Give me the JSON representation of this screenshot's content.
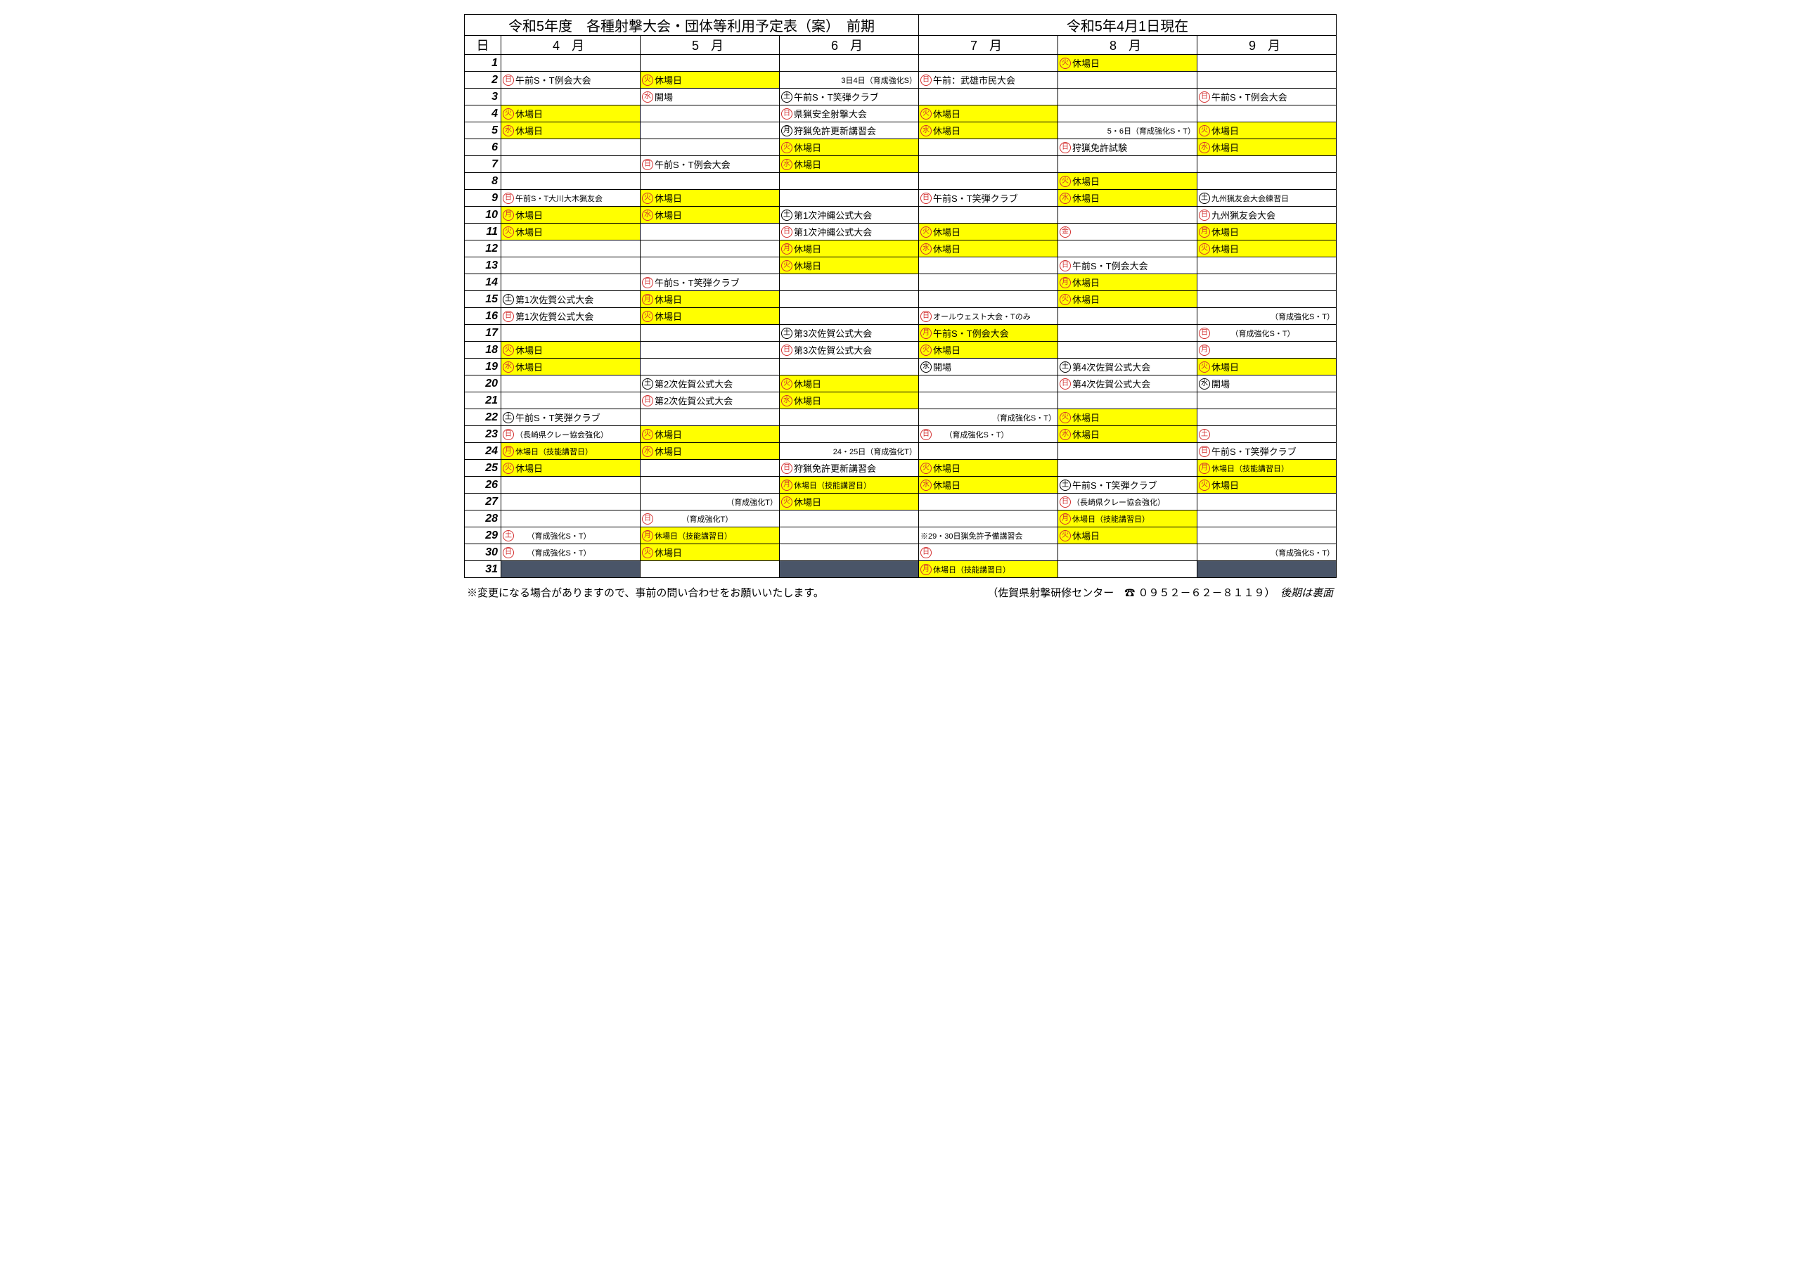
{
  "title": {
    "left": "令和5年度　各種射撃大会・団体等利用予定表（案）　前期",
    "right": "令和5年4月1日現在"
  },
  "headers": {
    "day": "日",
    "months": [
      "4 月",
      "5 月",
      "6 月",
      "7 月",
      "8 月",
      "9 月"
    ]
  },
  "rows": [
    {
      "d": "1",
      "c": [
        {},
        {},
        {},
        {},
        {
          "h": true,
          "y": "火",
          "yc": "red",
          "t": "休場日"
        },
        {}
      ]
    },
    {
      "d": "2",
      "c": [
        {
          "y": "日",
          "yc": "red",
          "t": "午前S・T例会大会"
        },
        {
          "h": true,
          "y": "火",
          "yc": "red",
          "t": "休場日"
        },
        {
          "t": "3日4日（育成強化S）",
          "a": "right",
          "sm": true
        },
        {
          "y": "日",
          "yc": "red",
          "t": "午前：武雄市民大会"
        },
        {},
        {}
      ]
    },
    {
      "d": "3",
      "c": [
        {},
        {
          "y": "水",
          "yc": "red",
          "t": "開場"
        },
        {
          "y": "土",
          "yc": "blk",
          "t": "午前S・T笑弾クラブ"
        },
        {},
        {},
        {
          "y": "日",
          "yc": "red",
          "t": "午前S・T例会大会"
        }
      ]
    },
    {
      "d": "4",
      "c": [
        {
          "h": true,
          "y": "火",
          "yc": "red",
          "t": "休場日"
        },
        {},
        {
          "y": "日",
          "yc": "red",
          "t": "県猟安全射撃大会"
        },
        {
          "h": true,
          "y": "火",
          "yc": "red",
          "t": "休場日"
        },
        {},
        {}
      ]
    },
    {
      "d": "5",
      "c": [
        {
          "h": true,
          "y": "水",
          "yc": "red",
          "t": "休場日"
        },
        {},
        {
          "y": "月",
          "yc": "blk",
          "t": "狩猟免許更新講習会"
        },
        {
          "h": true,
          "y": "水",
          "yc": "red",
          "t": "休場日"
        },
        {
          "t": "5・6日（育成強化S・T）",
          "a": "right",
          "sm": true
        },
        {
          "h": true,
          "y": "火",
          "yc": "red",
          "t": "休場日"
        }
      ]
    },
    {
      "d": "6",
      "c": [
        {},
        {},
        {
          "h": true,
          "y": "火",
          "yc": "red",
          "t": "休場日"
        },
        {},
        {
          "y": "日",
          "yc": "red",
          "t": "狩猟免許試験"
        },
        {
          "h": true,
          "y": "水",
          "yc": "red",
          "t": "休場日"
        }
      ]
    },
    {
      "d": "7",
      "c": [
        {},
        {
          "y": "日",
          "yc": "red",
          "t": "午前S・T例会大会"
        },
        {
          "h": true,
          "y": "水",
          "yc": "red",
          "t": "休場日"
        },
        {},
        {},
        {}
      ]
    },
    {
      "d": "8",
      "c": [
        {},
        {},
        {},
        {},
        {
          "h": true,
          "y": "火",
          "yc": "red",
          "t": "休場日"
        },
        {}
      ]
    },
    {
      "d": "9",
      "c": [
        {
          "y": "日",
          "yc": "red",
          "t": "午前S・T大川大木猟友会",
          "sm": true
        },
        {
          "h": true,
          "y": "火",
          "yc": "red",
          "t": "休場日"
        },
        {},
        {
          "y": "日",
          "yc": "red",
          "t": "午前S・T笑弾クラブ"
        },
        {
          "h": true,
          "y": "水",
          "yc": "red",
          "t": "休場日"
        },
        {
          "y": "土",
          "yc": "blk",
          "t": "九州猟友会大会練習日",
          "sm": true
        }
      ]
    },
    {
      "d": "10",
      "c": [
        {
          "h": true,
          "y": "月",
          "yc": "red",
          "t": "休場日"
        },
        {
          "h": true,
          "y": "水",
          "yc": "red",
          "t": "休場日"
        },
        {
          "y": "土",
          "yc": "blk",
          "t": "第1次沖縄公式大会"
        },
        {},
        {},
        {
          "y": "日",
          "yc": "red",
          "t": "九州猟友会大会"
        }
      ]
    },
    {
      "d": "11",
      "c": [
        {
          "h": true,
          "y": "火",
          "yc": "red",
          "t": "休場日"
        },
        {},
        {
          "y": "日",
          "yc": "red",
          "t": "第1次沖縄公式大会"
        },
        {
          "h": true,
          "y": "火",
          "yc": "red",
          "t": "休場日"
        },
        {
          "y": "金",
          "yc": "red"
        },
        {
          "h": true,
          "y": "月",
          "yc": "red",
          "t": "休場日"
        }
      ]
    },
    {
      "d": "12",
      "c": [
        {},
        {},
        {
          "h": true,
          "y": "月",
          "yc": "red",
          "t": "休場日"
        },
        {
          "h": true,
          "y": "水",
          "yc": "red",
          "t": "休場日"
        },
        {},
        {
          "h": true,
          "y": "火",
          "yc": "red",
          "t": "休場日"
        }
      ]
    },
    {
      "d": "13",
      "c": [
        {},
        {},
        {
          "h": true,
          "y": "火",
          "yc": "red",
          "t": "休場日"
        },
        {},
        {
          "y": "日",
          "yc": "red",
          "t": "午前S・T例会大会"
        },
        {}
      ]
    },
    {
      "d": "14",
      "c": [
        {},
        {
          "y": "日",
          "yc": "red",
          "t": "午前S・T笑弾クラブ"
        },
        {},
        {},
        {
          "h": true,
          "y": "月",
          "yc": "red",
          "t": "休場日"
        },
        {}
      ]
    },
    {
      "d": "15",
      "c": [
        {
          "y": "土",
          "yc": "blk",
          "t": "第1次佐賀公式大会"
        },
        {
          "h": true,
          "y": "月",
          "yc": "red",
          "t": "休場日"
        },
        {},
        {},
        {
          "h": true,
          "y": "火",
          "yc": "red",
          "t": "休場日"
        },
        {}
      ]
    },
    {
      "d": "16",
      "c": [
        {
          "y": "日",
          "yc": "red",
          "t": "第1次佐賀公式大会"
        },
        {
          "h": true,
          "y": "火",
          "yc": "red",
          "t": "休場日"
        },
        {},
        {
          "y": "日",
          "yc": "red",
          "t": "オールウェスト大会・Tのみ",
          "sm": true
        },
        {},
        {
          "t": "（育成強化S・T）",
          "a": "right",
          "sm": true
        }
      ]
    },
    {
      "d": "17",
      "c": [
        {},
        {},
        {
          "y": "土",
          "yc": "blk",
          "t": "第3次佐賀公式大会"
        },
        {
          "h": true,
          "y": "月",
          "yc": "red",
          "t": "午前S・T例会大会"
        },
        {},
        {
          "y": "日",
          "yc": "red",
          "t": "　　　（育成強化S・T）",
          "sm": true
        }
      ]
    },
    {
      "d": "18",
      "c": [
        {
          "h": true,
          "y": "火",
          "yc": "red",
          "t": "休場日"
        },
        {},
        {
          "y": "日",
          "yc": "red",
          "t": "第3次佐賀公式大会"
        },
        {
          "h": true,
          "y": "火",
          "yc": "red",
          "t": "休場日"
        },
        {},
        {
          "y": "月",
          "yc": "red"
        }
      ]
    },
    {
      "d": "19",
      "c": [
        {
          "h": true,
          "y": "水",
          "yc": "red",
          "t": "休場日"
        },
        {},
        {},
        {
          "y": "水",
          "yc": "blk",
          "t": "開場"
        },
        {
          "y": "土",
          "yc": "blk",
          "t": "第4次佐賀公式大会"
        },
        {
          "h": true,
          "y": "火",
          "yc": "red",
          "t": "休場日"
        }
      ]
    },
    {
      "d": "20",
      "c": [
        {},
        {
          "y": "土",
          "yc": "blk",
          "t": "第2次佐賀公式大会"
        },
        {
          "h": true,
          "y": "火",
          "yc": "red",
          "t": "休場日"
        },
        {},
        {
          "y": "日",
          "yc": "red",
          "t": "第4次佐賀公式大会"
        },
        {
          "y": "水",
          "yc": "blk",
          "t": "開場"
        }
      ]
    },
    {
      "d": "21",
      "c": [
        {},
        {
          "y": "日",
          "yc": "red",
          "t": "第2次佐賀公式大会"
        },
        {
          "h": true,
          "y": "水",
          "yc": "red",
          "t": "休場日"
        },
        {},
        {},
        {}
      ]
    },
    {
      "d": "22",
      "c": [
        {
          "y": "土",
          "yc": "blk",
          "t": "午前S・T笑弾クラブ"
        },
        {},
        {},
        {
          "t": "（育成強化S・T）",
          "a": "right",
          "sm": true
        },
        {
          "h": true,
          "y": "火",
          "yc": "red",
          "t": "休場日"
        },
        {}
      ]
    },
    {
      "d": "23",
      "c": [
        {
          "y": "日",
          "yc": "red",
          "t": "（長崎県クレー協会強化）",
          "sm": true
        },
        {
          "h": true,
          "y": "火",
          "yc": "red",
          "t": "休場日"
        },
        {},
        {
          "y": "日",
          "yc": "red",
          "t": "　　（育成強化S・T）",
          "sm": true
        },
        {
          "h": true,
          "y": "水",
          "yc": "red",
          "t": "休場日"
        },
        {
          "y": "土",
          "yc": "red"
        }
      ]
    },
    {
      "d": "24",
      "c": [
        {
          "h": true,
          "y": "月",
          "yc": "red",
          "t": "休場日（技能講習日）",
          "sm": true
        },
        {
          "h": true,
          "y": "水",
          "yc": "red",
          "t": "休場日"
        },
        {
          "t": "24・25日（育成強化T）",
          "a": "right",
          "sm": true
        },
        {},
        {},
        {
          "y": "日",
          "yc": "red",
          "t": "午前S・T笑弾クラブ"
        }
      ]
    },
    {
      "d": "25",
      "c": [
        {
          "h": true,
          "y": "火",
          "yc": "red",
          "t": "休場日"
        },
        {},
        {
          "y": "日",
          "yc": "red",
          "t": "狩猟免許更新講習会"
        },
        {
          "h": true,
          "y": "火",
          "yc": "red",
          "t": "休場日"
        },
        {},
        {
          "h": true,
          "y": "月",
          "yc": "red",
          "t": "休場日（技能講習日）",
          "sm": true
        }
      ]
    },
    {
      "d": "26",
      "c": [
        {},
        {},
        {
          "h": true,
          "y": "月",
          "yc": "red",
          "t": "休場日（技能講習日）",
          "sm": true
        },
        {
          "h": true,
          "y": "水",
          "yc": "red",
          "t": "休場日"
        },
        {
          "y": "土",
          "yc": "blk",
          "t": "午前S・T笑弾クラブ"
        },
        {
          "h": true,
          "y": "火",
          "yc": "red",
          "t": "休場日"
        }
      ]
    },
    {
      "d": "27",
      "c": [
        {},
        {
          "t": "（育成強化T）",
          "a": "right",
          "sm": true
        },
        {
          "h": true,
          "y": "火",
          "yc": "red",
          "t": "休場日"
        },
        {},
        {
          "y": "日",
          "yc": "red",
          "t": "（長崎県クレー協会強化）",
          "sm": true
        },
        {}
      ]
    },
    {
      "d": "28",
      "c": [
        {},
        {
          "y": "日",
          "yc": "red",
          "t": "　　　　（育成強化T）",
          "sm": true
        },
        {},
        {},
        {
          "h": true,
          "y": "月",
          "yc": "red",
          "t": "休場日（技能講習日）",
          "sm": true
        },
        {}
      ]
    },
    {
      "d": "29",
      "c": [
        {
          "y": "土",
          "yc": "red",
          "t": "　　（育成強化S・T）",
          "sm": true
        },
        {
          "h": true,
          "y": "月",
          "yc": "red",
          "t": "休場日（技能講習日）",
          "sm": true
        },
        {},
        {
          "t": "※29・30日猟免許予備講習会",
          "sm": true
        },
        {
          "h": true,
          "y": "火",
          "yc": "red",
          "t": "休場日"
        },
        {}
      ]
    },
    {
      "d": "30",
      "c": [
        {
          "y": "日",
          "yc": "red",
          "t": "　　（育成強化S・T）",
          "sm": true
        },
        {
          "h": true,
          "y": "火",
          "yc": "red",
          "t": "休場日"
        },
        {},
        {
          "y": "日",
          "yc": "red"
        },
        {},
        {
          "t": "（育成強化S・T）",
          "a": "right",
          "sm": true
        }
      ]
    },
    {
      "d": "31",
      "c": [
        {
          "dark": true
        },
        {},
        {
          "dark": true
        },
        {
          "h": true,
          "y": "月",
          "yc": "red",
          "t": "休場日（技能講習日）",
          "sm": true
        },
        {},
        {
          "dark": true
        }
      ]
    }
  ],
  "footer": {
    "left": "※変更になる場合がありますので、事前の問い合わせをお願いいたします。",
    "right_a": "（佐賀県射撃研修センター　",
    "right_b": "０９５２－６２－８１１９）　",
    "right_c": "後期は裏面"
  }
}
